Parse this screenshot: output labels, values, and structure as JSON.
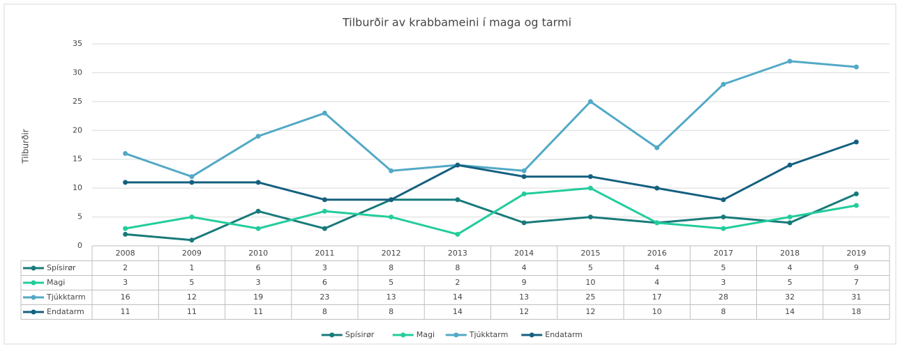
{
  "chart_data": {
    "type": "line",
    "title": "Tilburðir av krabbameini í maga og tarmi",
    "y_label": "Tilburðir",
    "categories": [
      "2008",
      "2009",
      "2010",
      "2011",
      "2012",
      "2013",
      "2014",
      "2015",
      "2016",
      "2017",
      "2018",
      "2019"
    ],
    "series": [
      {
        "name": "Spísirør",
        "color": "#187a7a",
        "values": [
          2,
          1,
          6,
          3,
          8,
          8,
          4,
          5,
          4,
          5,
          4,
          9
        ]
      },
      {
        "name": "Magi",
        "color": "#22cc9c",
        "values": [
          3,
          5,
          3,
          6,
          5,
          2,
          9,
          10,
          4,
          3,
          5,
          7
        ]
      },
      {
        "name": "Tjúkktarm",
        "color": "#52a9c6",
        "values": [
          16,
          12,
          19,
          23,
          13,
          14,
          13,
          25,
          17,
          28,
          32,
          31
        ]
      },
      {
        "name": "Endatarm",
        "color": "#14607f",
        "values": [
          11,
          11,
          11,
          8,
          8,
          14,
          12,
          12,
          10,
          8,
          14,
          18
        ]
      }
    ],
    "ylim": [
      0,
      35
    ],
    "yticks": [
      0,
      5,
      10,
      15,
      20,
      25,
      30,
      35
    ],
    "grid": true,
    "legend": "bottom",
    "data_table": true
  }
}
